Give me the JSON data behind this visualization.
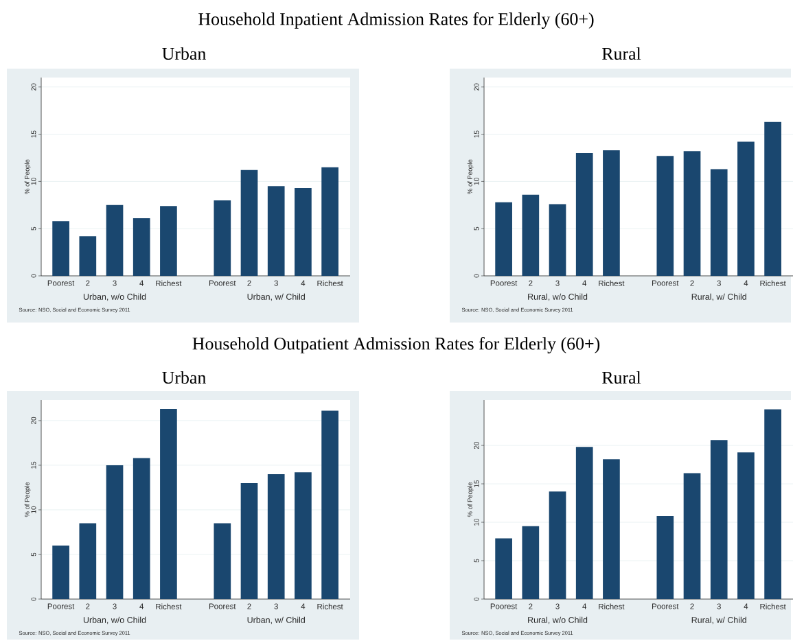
{
  "chart_data": [
    {
      "type": "bar",
      "title": "Household Inpatient Admission Rates for Elderly (60+)",
      "subtitle": "Urban",
      "ylabel": "% of People",
      "categories": [
        "Poorest",
        "2",
        "3",
        "4",
        "Richest",
        "Poorest",
        "2",
        "3",
        "4",
        "Richest"
      ],
      "values": [
        5.8,
        4.2,
        7.5,
        6.1,
        7.4,
        8.0,
        11.2,
        9.5,
        9.3,
        11.5
      ],
      "color": "#1a476f",
      "ylim": [
        0,
        21
      ],
      "yticks": [
        0,
        5,
        10,
        15,
        20
      ],
      "grid": "y",
      "annotations": [
        "Urban, w/o Child",
        "Urban, w/ Child",
        "Source:  NSO, Social and Economic Survey 2011"
      ]
    },
    {
      "type": "bar",
      "subtitle": "Rural",
      "ylabel": "% of People",
      "categories": [
        "Poorest",
        "2",
        "3",
        "4",
        "Richest",
        "Poorest",
        "2",
        "3",
        "4",
        "Richest"
      ],
      "values": [
        7.8,
        8.6,
        7.6,
        13.0,
        13.3,
        12.7,
        13.2,
        11.3,
        14.2,
        16.3
      ],
      "color": "#1a476f",
      "ylim": [
        0,
        21
      ],
      "yticks": [
        0,
        5,
        10,
        15,
        20
      ],
      "grid": "y",
      "annotations": [
        "Rural, w/o Child",
        "Rural, w/ Child",
        "Source:  NSO, Social and Economic Survey 2011"
      ]
    },
    {
      "type": "bar",
      "title": "Household Outpatient Admission Rates for Elderly (60+)",
      "subtitle": "Urban",
      "ylabel": "% of People",
      "categories": [
        "Poorest",
        "2",
        "3",
        "4",
        "Richest",
        "Poorest",
        "2",
        "3",
        "4",
        "Richest"
      ],
      "values": [
        6.0,
        8.5,
        15.0,
        15.8,
        21.3,
        8.5,
        13.0,
        14.0,
        14.2,
        21.1
      ],
      "color": "#1a476f",
      "ylim": [
        0,
        22.3
      ],
      "yticks": [
        0,
        5,
        10,
        15,
        20
      ],
      "grid": "y",
      "annotations": [
        "Urban, w/o Child",
        "Urban, w/ Child",
        "Source:  NSO, Social and Economic Survey 2011"
      ]
    },
    {
      "type": "bar",
      "subtitle": "Rural",
      "ylabel": "% of People",
      "categories": [
        "Poorest",
        "2",
        "3",
        "4",
        "Richest",
        "Poorest",
        "2",
        "3",
        "4",
        "Richest"
      ],
      "values": [
        7.9,
        9.5,
        14.0,
        19.8,
        18.2,
        10.8,
        16.4,
        20.7,
        19.1,
        24.7
      ],
      "color": "#1a476f",
      "ylim": [
        0,
        25.9
      ],
      "yticks": [
        0,
        5,
        10,
        15,
        20
      ],
      "grid": "y",
      "annotations": [
        "Rural, w/o Child",
        "Rural, w/ Child",
        "Source:  NSO, Social and Economic Survey 2011"
      ]
    }
  ]
}
